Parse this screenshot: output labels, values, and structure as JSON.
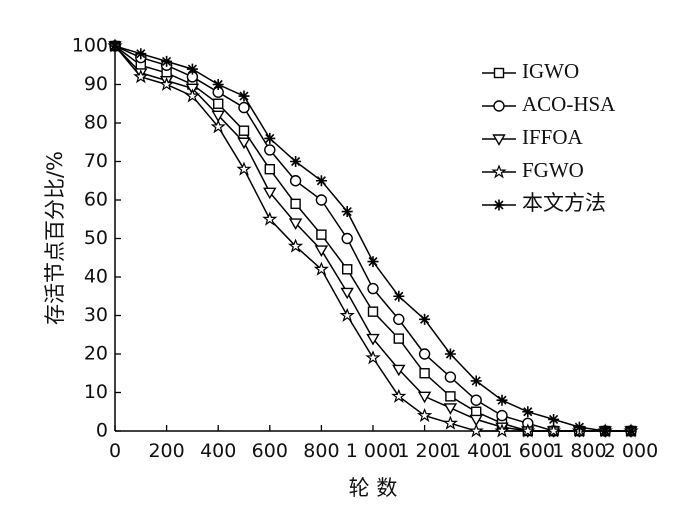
{
  "chart_data": {
    "type": "line",
    "title": "",
    "xlabel": "轮 数",
    "ylabel": "存活节点百分比/%",
    "xlim": [
      0,
      2000
    ],
    "ylim": [
      0,
      100
    ],
    "x_ticks": [
      0,
      200,
      400,
      600,
      800,
      1000,
      1200,
      1400,
      1600,
      1800,
      2000
    ],
    "x_tick_labels": [
      "0",
      "200",
      "400",
      "600",
      "800",
      "1 000",
      "1 200",
      "1 400",
      "1 600",
      "1 800",
      "2 000"
    ],
    "y_ticks": [
      0,
      10,
      20,
      30,
      40,
      50,
      60,
      70,
      80,
      90,
      100
    ],
    "grid": false,
    "legend_position": "top-right",
    "series": [
      {
        "name": "IGWO",
        "marker": "square",
        "x": [
          0,
          100,
          200,
          300,
          400,
          500,
          600,
          700,
          800,
          900,
          1000,
          1100,
          1200,
          1300,
          1400,
          1500,
          1600,
          1700,
          1800,
          1900,
          2000
        ],
        "y": [
          100,
          95,
          93,
          90,
          85,
          78,
          68,
          59,
          51,
          42,
          31,
          24,
          15,
          9,
          5,
          2,
          0,
          0,
          0,
          0,
          0
        ]
      },
      {
        "name": "ACO-HSA",
        "marker": "circle",
        "x": [
          0,
          100,
          200,
          300,
          400,
          500,
          600,
          700,
          800,
          900,
          1000,
          1100,
          1200,
          1300,
          1400,
          1500,
          1600,
          1700,
          1800,
          1900,
          2000
        ],
        "y": [
          100,
          97,
          95,
          92,
          88,
          84,
          73,
          65,
          60,
          50,
          37,
          29,
          20,
          14,
          8,
          4,
          2,
          0,
          0,
          0,
          0
        ]
      },
      {
        "name": "IFFOA",
        "marker": "triangle-down",
        "x": [
          0,
          100,
          200,
          300,
          400,
          500,
          600,
          700,
          800,
          900,
          1000,
          1100,
          1200,
          1300,
          1400,
          1500,
          1600,
          1700,
          1800,
          1900,
          2000
        ],
        "y": [
          100,
          93,
          91,
          89,
          82,
          75,
          62,
          54,
          47,
          36,
          24,
          16,
          9,
          6,
          3,
          1,
          0,
          0,
          0,
          0,
          0
        ]
      },
      {
        "name": "FGWO",
        "marker": "star",
        "x": [
          0,
          100,
          200,
          300,
          400,
          500,
          600,
          700,
          800,
          900,
          1000,
          1100,
          1200,
          1300,
          1400,
          1500,
          1600,
          1700,
          1800,
          1900,
          2000
        ],
        "y": [
          100,
          92,
          90,
          87,
          79,
          68,
          55,
          48,
          42,
          30,
          19,
          9,
          4,
          2,
          0,
          0,
          0,
          0,
          0,
          0,
          0
        ]
      },
      {
        "name": "本文方法",
        "marker": "asterisk",
        "x": [
          0,
          100,
          200,
          300,
          400,
          500,
          600,
          700,
          800,
          900,
          1000,
          1100,
          1200,
          1300,
          1400,
          1500,
          1600,
          1700,
          1800,
          1900,
          2000
        ],
        "y": [
          100,
          98,
          96,
          94,
          90,
          87,
          76,
          70,
          65,
          57,
          44,
          35,
          29,
          20,
          13,
          8,
          5,
          3,
          1,
          0,
          0
        ]
      }
    ]
  }
}
